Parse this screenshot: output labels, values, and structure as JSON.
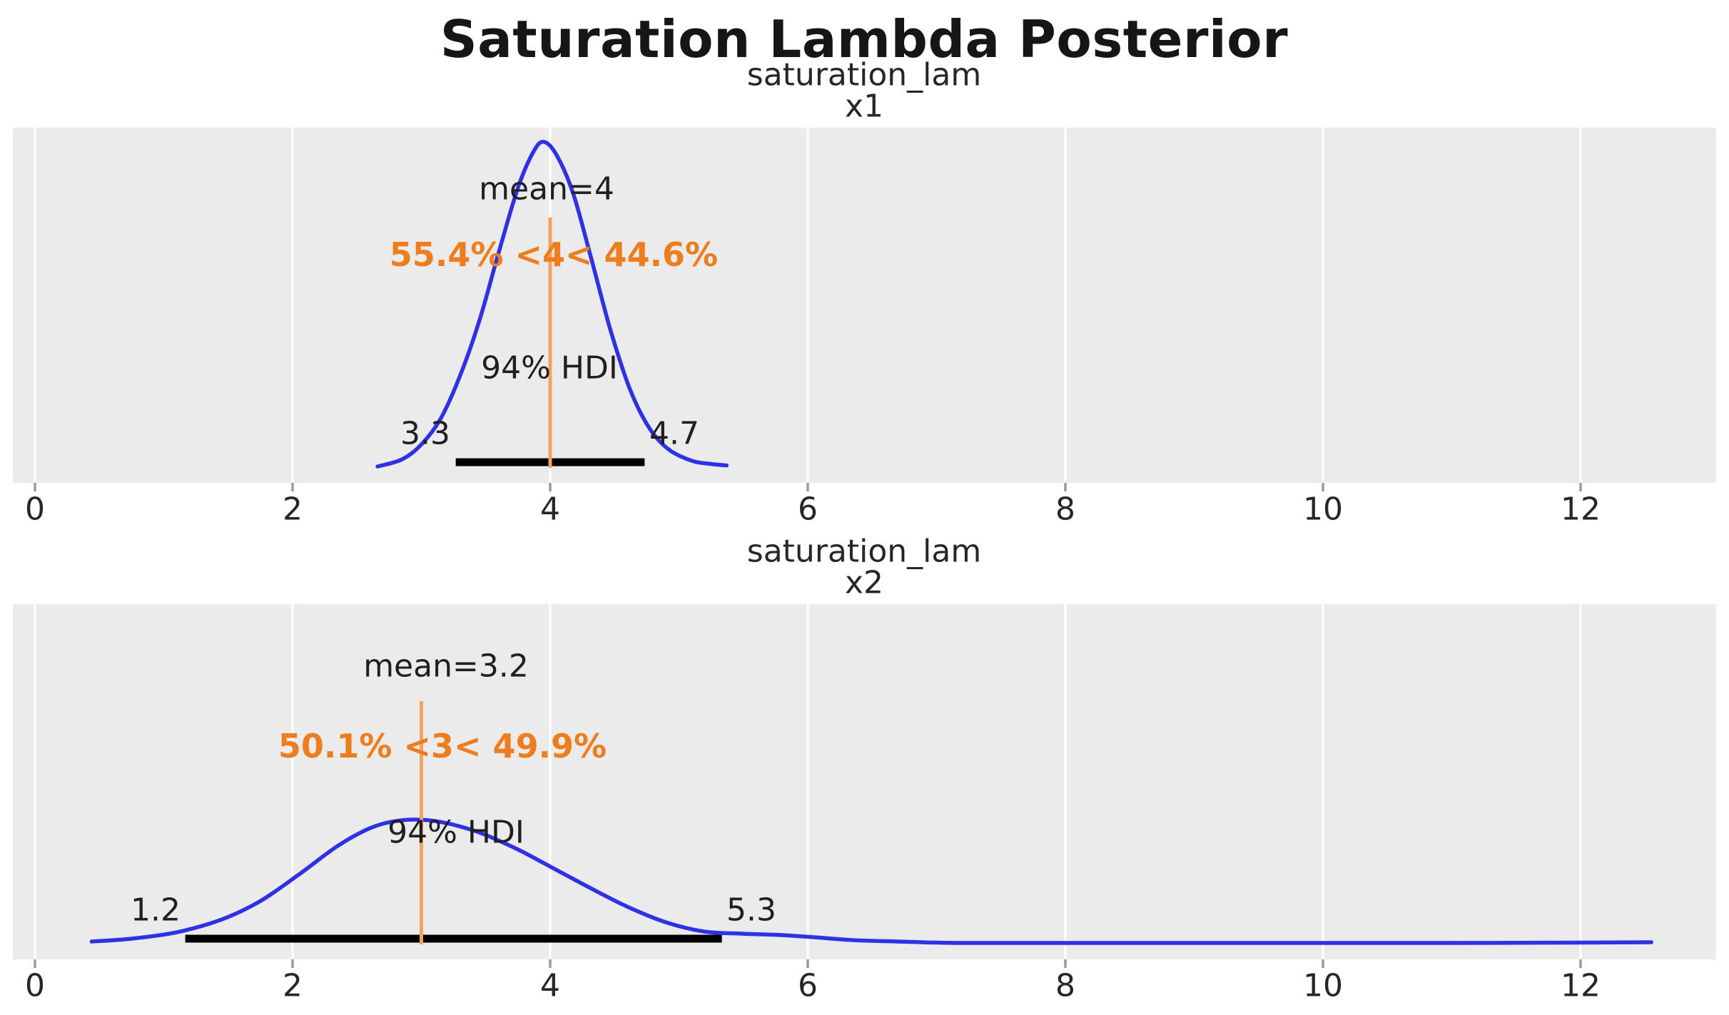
{
  "figure": {
    "title": "Saturation Lambda Posterior"
  },
  "colors": {
    "panel_bg": "#ebebeb",
    "grid": "#ffffff",
    "kde_line": "#2f31e5",
    "ref_line": "#f2a35e",
    "ref_text": "#ee7d1e",
    "hdi_bar": "#000000",
    "tick_mark": "#9a9a9a",
    "text": "#262626"
  },
  "chart_data": [
    {
      "type": "area",
      "title": "saturation_lam",
      "subtitle": "x1",
      "mean": 3.97,
      "mean_label": "mean=4",
      "ref_val": 4,
      "ref_val_label": "55.4% <4< 44.6%",
      "hdi_label": "94% HDI",
      "hdi": [
        3.3,
        4.7
      ],
      "hdi_lower_label": "3.3",
      "hdi_upper_label": "4.7",
      "x_ticks": [
        "0",
        "2",
        "4",
        "6",
        "8",
        "10",
        "12"
      ],
      "x_tick_values": [
        0,
        2,
        4,
        6,
        8,
        10,
        12
      ],
      "xlim": [
        -0.17,
        13.05
      ],
      "grid": true,
      "legend": "none",
      "kde": [
        [
          2.66,
          0.002
        ],
        [
          2.85,
          0.022
        ],
        [
          3.0,
          0.064
        ],
        [
          3.15,
          0.137
        ],
        [
          3.3,
          0.257
        ],
        [
          3.45,
          0.412
        ],
        [
          3.6,
          0.604
        ],
        [
          3.75,
          0.787
        ],
        [
          3.87,
          0.888
        ],
        [
          3.95,
          0.916
        ],
        [
          4.05,
          0.879
        ],
        [
          4.18,
          0.769
        ],
        [
          4.32,
          0.586
        ],
        [
          4.47,
          0.384
        ],
        [
          4.62,
          0.219
        ],
        [
          4.77,
          0.11
        ],
        [
          4.92,
          0.05
        ],
        [
          5.1,
          0.018
        ],
        [
          5.25,
          0.009
        ],
        [
          5.37,
          0.005
        ]
      ]
    },
    {
      "type": "area",
      "title": "saturation_lam",
      "subtitle": "x2",
      "mean": 3.2,
      "mean_label": "mean=3.2",
      "ref_val": 3,
      "ref_val_label": "50.1% <3< 49.9%",
      "hdi_label": "94% HDI",
      "hdi": [
        1.2,
        5.3
      ],
      "hdi_lower_label": "1.2",
      "hdi_upper_label": "5.3",
      "x_ticks": [
        "0",
        "2",
        "4",
        "6",
        "8",
        "10",
        "12"
      ],
      "x_tick_values": [
        0,
        2,
        4,
        6,
        8,
        10,
        12
      ],
      "xlim": [
        -0.17,
        13.05
      ],
      "grid": true,
      "legend": "none",
      "kde": [
        [
          0.44,
          0.006
        ],
        [
          0.75,
          0.014
        ],
        [
          1.1,
          0.032
        ],
        [
          1.45,
          0.068
        ],
        [
          1.75,
          0.12
        ],
        [
          2.05,
          0.195
        ],
        [
          2.35,
          0.275
        ],
        [
          2.6,
          0.325
        ],
        [
          2.8,
          0.345
        ],
        [
          3.0,
          0.349
        ],
        [
          3.2,
          0.339
        ],
        [
          3.45,
          0.313
        ],
        [
          3.75,
          0.265
        ],
        [
          4.0,
          0.217
        ],
        [
          4.3,
          0.159
        ],
        [
          4.6,
          0.104
        ],
        [
          4.9,
          0.06
        ],
        [
          5.2,
          0.034
        ],
        [
          5.5,
          0.028
        ],
        [
          5.8,
          0.024
        ],
        [
          6.05,
          0.018
        ],
        [
          6.35,
          0.01
        ],
        [
          6.7,
          0.006
        ],
        [
          7.2,
          0.002
        ],
        [
          8.0,
          0.002
        ],
        [
          9.0,
          0.002
        ],
        [
          10.0,
          0.002
        ],
        [
          11.0,
          0.002
        ],
        [
          12.0,
          0.003
        ],
        [
          12.55,
          0.004
        ]
      ]
    }
  ]
}
